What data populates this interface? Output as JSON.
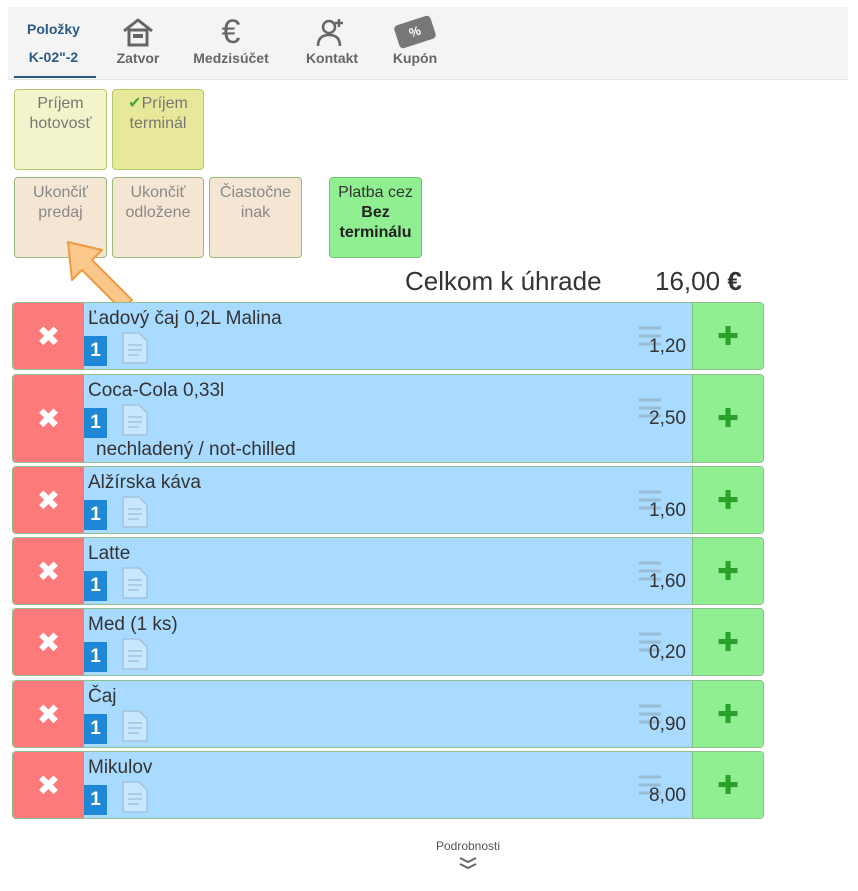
{
  "tabs": {
    "items_line1": "Položky",
    "items_line2": "K-02\"-2",
    "close": "Zatvor",
    "subtotal": "Medzisúčet",
    "contact": "Kontakt",
    "coupon": "Kupón",
    "subtotal_icon_glyph": "€",
    "coupon_icon_glyph": "%"
  },
  "payments": {
    "cash_l1": "Príjem",
    "cash_l2": "hotovosť",
    "check_glyph": "✔",
    "terminal_l1": "Príjem",
    "terminal_l2": "terminál",
    "end_sale_l1": "Ukončiť",
    "end_sale_l2": "predaj",
    "end_deferred_l1": "Ukončiť",
    "end_deferred_l2": "odložene",
    "partial_l1": "Čiastočne",
    "partial_l2": "inak",
    "no_terminal_l1": "Platba cez",
    "no_terminal_l2": "Bez",
    "no_terminal_l3": "terminálu"
  },
  "total": {
    "label": "Celkom k úhrade",
    "amount": "16,00",
    "currency": "€"
  },
  "items": [
    {
      "name": "Ľadový čaj 0,2L Malina",
      "qty": "1",
      "price": "1,20"
    },
    {
      "name": "Coca-Cola 0,33l",
      "qty": "1",
      "price": "2,50",
      "note": "nechladený / not-chilled"
    },
    {
      "name": "Alžírska káva",
      "qty": "1",
      "price": "1,60"
    },
    {
      "name": "Latte",
      "qty": "1",
      "price": "1,60"
    },
    {
      "name": "Med (1 ks)",
      "qty": "1",
      "price": "0,20"
    },
    {
      "name": "Čaj",
      "qty": "1",
      "price": "0,90"
    },
    {
      "name": "Mikulov",
      "qty": "1",
      "price": "8,00"
    }
  ],
  "row_glyphs": {
    "delete": "✖",
    "add": "✚"
  },
  "footer": {
    "details": "Podrobnosti"
  },
  "colors": {
    "accent": "#2a5b84",
    "delete": "#fd7a7a",
    "item": "#a8dbff",
    "add": "#90ef90",
    "qty_badge": "#1e88d6"
  }
}
